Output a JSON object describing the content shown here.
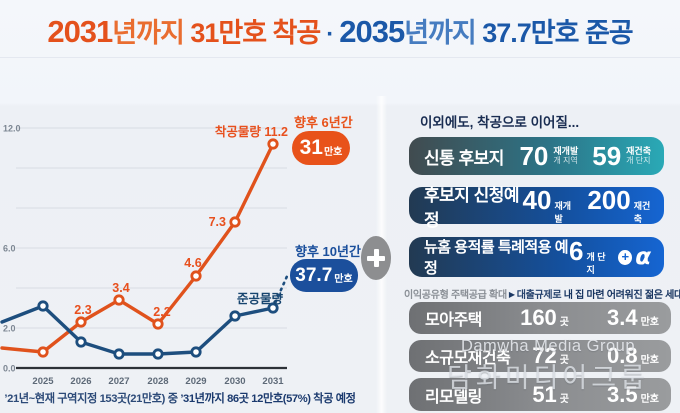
{
  "header": {
    "num1": "2031",
    "rest1": "년까지 ",
    "strong1": "31만호 착공",
    "sep": "·",
    "num2": "2035",
    "rest2": "년까지 ",
    "strong2": "37.7만호 준공"
  },
  "colors": {
    "accent_orange": "#e4511c",
    "accent_blue": "#1b58a8",
    "badge_blue": "#1b4f9c",
    "teal": "#2aa9b6",
    "gray_pill": "#8a8c8f"
  },
  "chart_data": {
    "type": "line",
    "x_labels": [
      "2025",
      "2026",
      "2027",
      "2028",
      "2029",
      "2030",
      "2031"
    ],
    "ylim": [
      0,
      12
    ],
    "yticks": [
      {
        "value": 12,
        "label": "12.0"
      },
      {
        "value": 6,
        "label": "6.0"
      },
      {
        "value": 2,
        "label": "2.0"
      },
      {
        "value": 0,
        "label": "0.0"
      }
    ],
    "gridline_values": [
      2,
      4,
      6,
      8,
      10,
      12
    ],
    "grid": true,
    "series": [
      {
        "name": "착공물량",
        "color": "#e0521c",
        "lead_in": 1.0,
        "values": [
          0.8,
          2.3,
          3.4,
          2.2,
          4.6,
          7.3,
          11.2
        ],
        "point_labels": [
          null,
          "2.3",
          "3.4",
          "2.2",
          "4.6",
          "7.3",
          "11.2"
        ]
      },
      {
        "name": "준공물량",
        "color": "#1d4e7e",
        "lead_in": 2.3,
        "values": [
          3.1,
          1.3,
          0.7,
          0.7,
          0.8,
          2.6,
          3.0
        ],
        "dashed_projection": true
      }
    ]
  },
  "annotations": {
    "future6_caption": "향후 6년간",
    "future6_value": "31",
    "future6_unit": "만호",
    "future10_caption": "향후 10년간",
    "future10_value": "37.7",
    "future10_unit": "만호"
  },
  "footnote": {
    "normal": "’21년~현재 구역지정 153곳(21만호) 중 ",
    "bold": "’31년까지 86곳 12만호(57%) 착공 예정"
  },
  "right_panel": {
    "heading": "이외에도, 착공으로 이어질...",
    "rows": [
      {
        "label": "신통 후보지",
        "stats": [
          {
            "num": "70",
            "unit_line1": "재개발",
            "unit_line2": "개 지역"
          },
          {
            "num": "59",
            "unit_line1": "재건축",
            "unit_line2": "개 단지"
          }
        ]
      },
      {
        "label": "후보지 신청예정",
        "stats": [
          {
            "num": "40",
            "unit": "재개발"
          },
          {
            "num": "200",
            "unit": "재건축"
          }
        ]
      },
      {
        "label": "뉴홈 용적률 특례적용 예정",
        "stats": [
          {
            "num": "6",
            "unit": "개 단지"
          }
        ],
        "plus": "+",
        "alpha": "α"
      }
    ],
    "note": {
      "muted": "이익공유형 주택공급 확대",
      "arrow": "▶",
      "lead": "대출규제로 ",
      "bold": "내 집 마련 어려워진 젊은 세대 지원"
    },
    "gray_rows": [
      {
        "label": "모아주택",
        "count": "160",
        "count_unit": "곳",
        "amount": "3.4",
        "amount_unit": "만호"
      },
      {
        "label": "소규모재건축",
        "count": "72",
        "count_unit": "곳",
        "amount": "0.8",
        "amount_unit": "만호"
      },
      {
        "label": "리모델링",
        "count": "51",
        "count_unit": "곳",
        "amount": "3.5",
        "amount_unit": "만호"
      }
    ]
  },
  "watermark": {
    "line1": "Damwha Media Group",
    "line2": "담화미디어그룹"
  }
}
